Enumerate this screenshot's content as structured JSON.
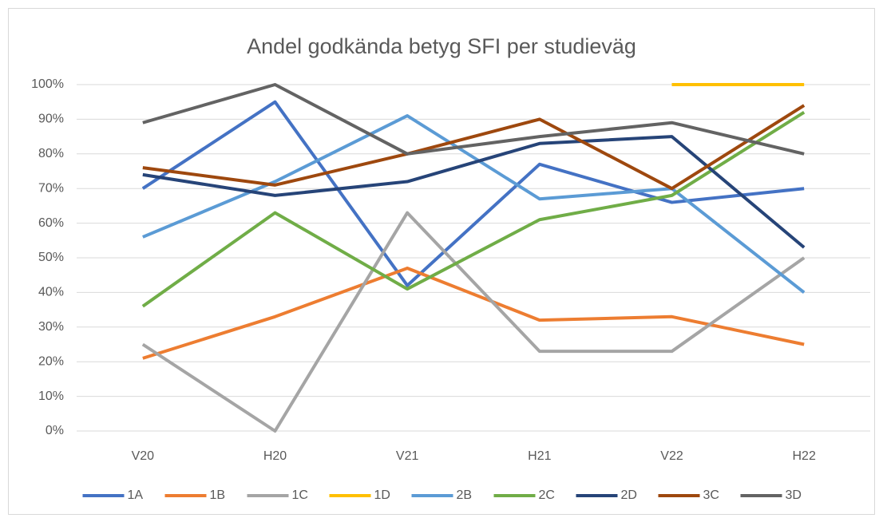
{
  "chart_data": {
    "type": "line",
    "title": "Andel godkända betyg SFI per studieväg",
    "categories": [
      "V20",
      "H20",
      "V21",
      "H21",
      "V22",
      "H22"
    ],
    "series": [
      {
        "name": "1A",
        "color": "#4472c4",
        "values": [
          70,
          95,
          42,
          77,
          66,
          70
        ]
      },
      {
        "name": "1B",
        "color": "#ed7d31",
        "values": [
          21,
          33,
          47,
          32,
          33,
          25
        ]
      },
      {
        "name": "1C",
        "color": "#a5a5a5",
        "values": [
          25,
          0,
          63,
          23,
          23,
          50
        ]
      },
      {
        "name": "1D",
        "color": "#ffc000",
        "values": [
          null,
          null,
          null,
          null,
          100,
          100
        ]
      },
      {
        "name": "2B",
        "color": "#5b9bd5",
        "values": [
          56,
          72,
          91,
          67,
          70,
          40
        ]
      },
      {
        "name": "2C",
        "color": "#70ad47",
        "values": [
          36,
          63,
          41,
          61,
          68,
          92
        ]
      },
      {
        "name": "2D",
        "color": "#264478",
        "values": [
          74,
          68,
          72,
          83,
          85,
          53
        ]
      },
      {
        "name": "3C",
        "color": "#9e480e",
        "values": [
          76,
          71,
          80,
          90,
          70,
          94
        ]
      },
      {
        "name": "3D",
        "color": "#636363",
        "values": [
          89,
          100,
          80,
          85,
          89,
          80
        ]
      }
    ],
    "ylim": [
      0,
      100
    ],
    "yticks": [
      {
        "value": 0,
        "label": "0%"
      },
      {
        "value": 10,
        "label": "10%"
      },
      {
        "value": 20,
        "label": "20%"
      },
      {
        "value": 30,
        "label": "30%"
      },
      {
        "value": 40,
        "label": "40%"
      },
      {
        "value": 50,
        "label": "50%"
      },
      {
        "value": 60,
        "label": "60%"
      },
      {
        "value": 70,
        "label": "70%"
      },
      {
        "value": 80,
        "label": "80%"
      },
      {
        "value": 90,
        "label": "90%"
      },
      {
        "value": 100,
        "label": "100%"
      }
    ],
    "grid": true,
    "legend": "bottom"
  }
}
